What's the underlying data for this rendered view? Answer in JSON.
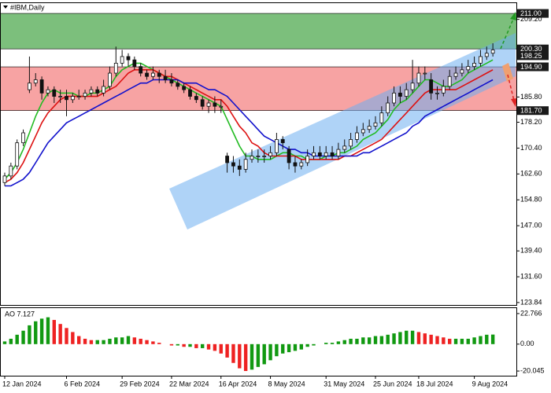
{
  "chart_data": [
    {
      "type": "candlestick",
      "title": "#IBM,Daily",
      "categories": [
        "12 Jan 2024",
        null,
        null,
        null,
        null,
        null,
        null,
        null,
        null,
        null,
        "6 Feb 2024",
        null,
        null,
        null,
        null,
        null,
        null,
        null,
        null,
        "29 Feb 2024",
        null,
        null,
        null,
        null,
        null,
        null,
        null,
        "22 Mar 2024",
        null,
        null,
        null,
        null,
        null,
        null,
        null,
        "16 Apr 2024",
        null,
        null,
        null,
        null,
        null,
        null,
        null,
        "8 May 2024",
        null,
        null,
        null,
        null,
        null,
        null,
        null,
        null,
        "31 May 2024",
        null,
        null,
        null,
        null,
        null,
        null,
        null,
        "25 Jun 2024",
        null,
        null,
        null,
        null,
        null,
        null,
        "18 Jul 2024",
        null,
        null,
        null,
        null,
        null,
        null,
        null,
        null,
        "9 Aug 2024",
        null,
        null,
        null
      ],
      "open": [
        160,
        162,
        165,
        172,
        188,
        190,
        191,
        187,
        188,
        186,
        186,
        185,
        186,
        186,
        187,
        188,
        187,
        189,
        193,
        196,
        198,
        197,
        195,
        193,
        192,
        193,
        192,
        191,
        190,
        189,
        188,
        186,
        185,
        183,
        184,
        183,
        168,
        166,
        165,
        164,
        167,
        168,
        168,
        168,
        169,
        173,
        170,
        166,
        165,
        166,
        168,
        169,
        168,
        169,
        168,
        170,
        171,
        173,
        175,
        176,
        177,
        178,
        181,
        184,
        187,
        186,
        188,
        190,
        193,
        191,
        187,
        187,
        189,
        192,
        193,
        194,
        195,
        196,
        198,
        199
      ],
      "high": [
        163,
        166,
        173,
        176,
        198,
        193,
        192,
        189,
        189,
        188,
        188,
        187,
        188,
        188,
        189,
        189,
        191,
        195,
        201,
        200,
        199,
        198,
        196,
        194,
        195,
        194,
        194,
        193,
        191,
        190,
        189,
        187,
        186,
        185,
        186,
        185,
        169,
        168,
        167,
        169,
        170,
        170,
        170,
        171,
        175,
        174,
        171,
        168,
        167,
        170,
        171,
        171,
        171,
        171,
        172,
        173,
        175,
        177,
        178,
        179,
        180,
        183,
        186,
        189,
        189,
        190,
        197,
        195,
        195,
        193,
        189,
        191,
        194,
        195,
        196,
        197,
        198,
        200,
        201,
        202
      ],
      "low": [
        159,
        161,
        164,
        171,
        187,
        189,
        185,
        186,
        184,
        184,
        180,
        184,
        185,
        185,
        186,
        186,
        186,
        188,
        192,
        195,
        195,
        194,
        192,
        191,
        191,
        190,
        190,
        189,
        188,
        187,
        185,
        184,
        182,
        181,
        181,
        181,
        163,
        163,
        162,
        163,
        166,
        166,
        166,
        167,
        168,
        170,
        164,
        163,
        164,
        165,
        167,
        167,
        167,
        167,
        167,
        169,
        170,
        172,
        174,
        175,
        176,
        177,
        180,
        183,
        184,
        185,
        187,
        189,
        191,
        185,
        185,
        186,
        188,
        191,
        192,
        193,
        194,
        195,
        197,
        198
      ],
      "close": [
        162,
        165,
        172,
        175,
        190,
        191,
        187,
        188,
        186,
        186,
        185,
        186,
        186,
        187,
        188,
        187,
        189,
        193,
        196,
        198,
        197,
        195,
        193,
        192,
        193,
        192,
        191,
        190,
        189,
        188,
        186,
        185,
        183,
        184,
        183,
        183,
        166,
        165,
        164,
        167,
        168,
        168,
        168,
        169,
        173,
        172,
        166,
        165,
        166,
        168,
        169,
        168,
        169,
        168,
        170,
        171,
        173,
        175,
        176,
        177,
        178,
        181,
        184,
        187,
        186,
        188,
        190,
        193,
        193,
        187,
        187,
        189,
        192,
        193,
        194,
        195,
        196,
        198,
        199,
        200
      ],
      "up_color": "#ffffff",
      "down_color": "#111111",
      "series": [
        {
          "color": "#22bb22",
          "values": [
            161,
            163,
            166,
            170,
            175,
            180,
            184,
            187,
            188,
            187,
            187,
            187,
            186,
            186,
            187,
            187,
            188,
            189,
            192,
            194,
            195,
            196,
            196,
            195,
            194,
            193,
            192,
            191,
            190,
            189,
            188,
            187,
            186,
            185,
            184,
            183,
            179,
            175,
            171,
            168,
            168,
            167,
            167,
            167,
            168,
            169,
            169,
            168,
            168,
            167,
            167,
            167,
            168,
            168,
            169,
            169,
            170,
            171,
            173,
            174,
            175,
            177,
            179,
            182,
            184,
            185,
            187,
            189,
            191,
            191,
            190,
            189,
            189,
            190,
            191,
            193,
            194,
            195,
            196,
            197
          ]
        },
        {
          "color": "#dd1111",
          "values": [
            160,
            161,
            163,
            166,
            170,
            174,
            178,
            181,
            183,
            185,
            186,
            186,
            186,
            186,
            186,
            186,
            187,
            188,
            189,
            191,
            193,
            194,
            194,
            194,
            194,
            193,
            192,
            192,
            191,
            190,
            189,
            188,
            187,
            186,
            185,
            185,
            183,
            180,
            177,
            175,
            172,
            171,
            169,
            168,
            168,
            168,
            168,
            168,
            167,
            167,
            167,
            167,
            167,
            167,
            167,
            168,
            168,
            169,
            170,
            171,
            172,
            173,
            175,
            177,
            179,
            181,
            183,
            185,
            187,
            188,
            188,
            188,
            188,
            188,
            189,
            190,
            191,
            192,
            193,
            194
          ]
        },
        {
          "color": "#1111cc",
          "values": [
            159,
            159,
            160,
            161,
            163,
            166,
            169,
            172,
            174,
            176,
            178,
            179,
            180,
            181,
            182,
            183,
            184,
            185,
            186,
            187,
            188,
            189,
            190,
            190,
            191,
            191,
            191,
            191,
            191,
            190,
            190,
            190,
            189,
            188,
            188,
            187,
            186,
            184,
            182,
            180,
            178,
            176,
            174,
            173,
            172,
            171,
            170,
            170,
            169,
            169,
            168,
            168,
            168,
            168,
            168,
            168,
            168,
            168,
            169,
            169,
            170,
            171,
            172,
            173,
            174,
            175,
            177,
            178,
            180,
            181,
            182,
            183,
            184,
            185,
            186,
            187,
            188,
            189,
            190,
            191
          ]
        }
      ],
      "zones": [
        {
          "lo": 200.3,
          "hi": 211.0,
          "color": "#7cbf7c"
        },
        {
          "lo": 181.7,
          "hi": 194.9,
          "color": "#f7a3a3"
        }
      ],
      "price_levels": [
        {
          "value": 211.0,
          "label": "211.00"
        },
        {
          "value": 200.3,
          "label": "200.30"
        },
        {
          "value": 198.25,
          "label": "198.25"
        },
        {
          "value": 194.9,
          "label": "194.90"
        },
        {
          "value": 181.7,
          "label": "181.70"
        }
      ],
      "ylim": [
        123.1,
        214.1
      ],
      "yticks": [
        {
          "value": 209.2,
          "label": "209.20"
        },
        {
          "value": 185.8,
          "label": "185.80"
        },
        {
          "value": 178.2,
          "label": "178.20"
        },
        {
          "value": 170.4,
          "label": "170.40"
        },
        {
          "value": 162.6,
          "label": "162.60"
        },
        {
          "value": 154.8,
          "label": "154.80"
        },
        {
          "value": 147.0,
          "label": "147.00"
        },
        {
          "value": 139.4,
          "label": "139.40"
        },
        {
          "value": 131.6,
          "label": "131.60"
        },
        123.84
      ]
    },
    {
      "type": "bar",
      "title": "AO 7.127",
      "values": [
        2,
        4,
        7,
        10,
        14,
        17,
        19,
        20,
        18,
        15,
        12,
        9,
        6,
        4,
        3,
        3,
        3,
        4,
        5,
        5,
        6,
        5,
        4,
        3,
        2,
        1,
        0,
        -1,
        -1,
        -2,
        -2,
        -3,
        -3,
        -4,
        -5,
        -7,
        -10,
        -14,
        -18,
        -20,
        -19,
        -17,
        -15,
        -12,
        -9,
        -7,
        -6,
        -5,
        -4,
        -2,
        -1,
        0,
        1,
        1,
        2,
        3,
        4,
        4,
        5,
        5,
        6,
        6,
        7,
        8,
        9,
        10,
        10,
        9,
        8,
        7,
        6,
        5,
        4,
        4,
        4,
        4,
        5,
        6,
        7,
        7.127
      ],
      "up_color": "#119911",
      "down_color": "#ee2222",
      "ylim": [
        -23.52,
        26.82
      ],
      "yticks": [
        22.766,
        {
          "value": 0,
          "label": "0.00"
        },
        -20.045
      ]
    }
  ]
}
